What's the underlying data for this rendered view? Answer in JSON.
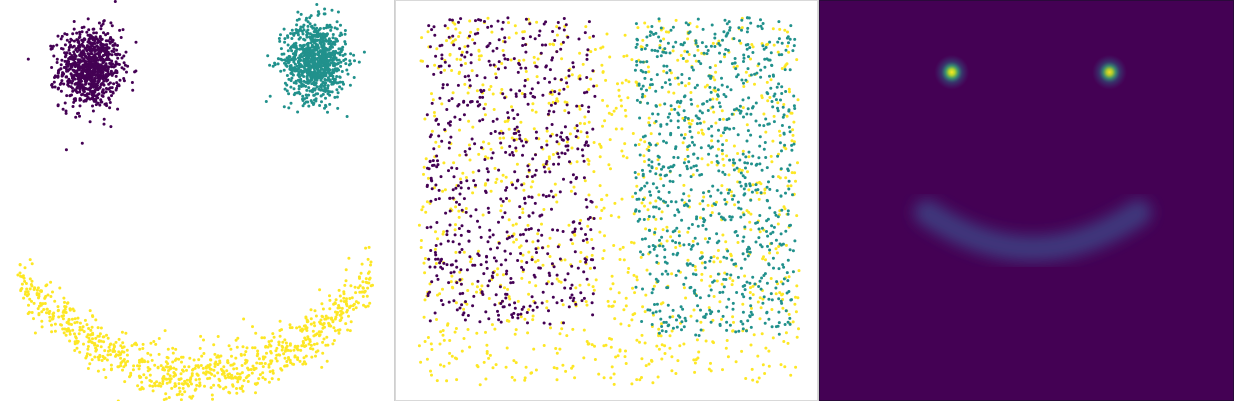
{
  "chart_data": [
    {
      "type": "scatter",
      "title": "",
      "xlabel": "",
      "ylabel": "",
      "axes": "off",
      "grid": false,
      "legend": "none",
      "xlim": [
        0,
        1
      ],
      "ylim": [
        0,
        1
      ],
      "colormap": "viridis",
      "series": [
        {
          "color": "#440154",
          "count": 900,
          "shape": "gaussian-blob",
          "center": [
            0.22,
            0.84
          ],
          "spread": [
            0.04,
            0.05
          ]
        },
        {
          "color": "#21918c",
          "count": 900,
          "shape": "gaussian-blob",
          "center": [
            0.81,
            0.86
          ],
          "spread": [
            0.04,
            0.05
          ]
        },
        {
          "color": "#fde725",
          "count": 900,
          "shape": "smile-arc",
          "x_range": [
            0.03,
            0.96
          ],
          "center_y": 0.05,
          "edge_y": 0.3
        }
      ]
    },
    {
      "type": "scatter",
      "title": "",
      "xlabel": "",
      "ylabel": "",
      "axes": "frame-only",
      "grid": false,
      "legend": "none",
      "xlim": [
        0,
        1
      ],
      "ylim": [
        0,
        1
      ],
      "colormap": "viridis",
      "series": [
        {
          "color": "#440154",
          "count": 650,
          "shape": "uniform-region",
          "x_range": [
            0.05,
            0.47
          ],
          "y_range": [
            0.18,
            0.97
          ]
        },
        {
          "color": "#21918c",
          "count": 850,
          "shape": "uniform-region",
          "x_range": [
            0.57,
            0.97
          ],
          "y_range": [
            0.15,
            0.97
          ]
        },
        {
          "color": "#fde725",
          "count": 1100,
          "shape": "uniform-fill",
          "x_range": [
            0.03,
            0.98
          ],
          "y_range": [
            0.02,
            0.97
          ]
        }
      ]
    },
    {
      "type": "heatmap",
      "title": "",
      "xlabel": "",
      "ylabel": "",
      "axes": "frame-only",
      "grid": false,
      "legend": "none",
      "colormap": "viridis",
      "background_color": "#440154",
      "peaks": [
        {
          "x": 0.32,
          "y": 0.18,
          "intensity": 1.0,
          "spread": 0.035
        },
        {
          "x": 0.7,
          "y": 0.18,
          "intensity": 0.95,
          "spread": 0.035
        }
      ],
      "arc": {
        "x_range": [
          0.26,
          0.77
        ],
        "center_y": 0.62,
        "edge_y": 0.53,
        "intensity": 0.22,
        "spread": 0.03
      }
    }
  ]
}
